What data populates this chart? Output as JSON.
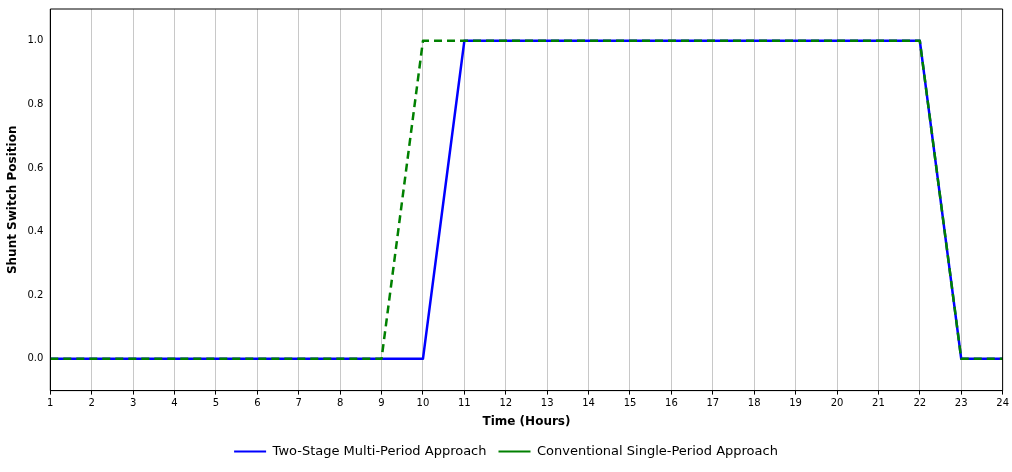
{
  "chart_data": {
    "type": "line",
    "xlabel": "Time (Hours)",
    "ylabel": "Shunt Switch Position",
    "x": [
      1,
      2,
      3,
      4,
      5,
      6,
      7,
      8,
      9,
      10,
      11,
      12,
      13,
      14,
      15,
      16,
      17,
      18,
      19,
      20,
      21,
      22,
      23,
      24
    ],
    "series": [
      {
        "name": "Two-Stage Multi-Period Approach",
        "color": "#0000ff",
        "line_style": "solid",
        "values": [
          0,
          0,
          0,
          0,
          0,
          0,
          0,
          0,
          0,
          0,
          1,
          1,
          1,
          1,
          1,
          1,
          1,
          1,
          1,
          1,
          1,
          1,
          0,
          0
        ]
      },
      {
        "name": "Conventional Single-Period Approach",
        "color": "#008000",
        "line_style": "dashed",
        "values": [
          0,
          0,
          0,
          0,
          0,
          0,
          0,
          0,
          0,
          1,
          1,
          1,
          1,
          1,
          1,
          1,
          1,
          1,
          1,
          1,
          1,
          1,
          0,
          0
        ]
      }
    ],
    "xlim": [
      1,
      24
    ],
    "xticks": [
      1,
      2,
      3,
      4,
      5,
      6,
      7,
      8,
      9,
      10,
      11,
      12,
      13,
      14,
      15,
      16,
      17,
      18,
      19,
      20,
      21,
      22,
      23,
      24
    ],
    "ylim": [
      -0.1,
      1.1
    ],
    "yticks": [
      {
        "value": 0,
        "label": "0.0"
      },
      {
        "value": 0.2,
        "label": "0.2"
      },
      {
        "value": 0.4,
        "label": "0.4"
      },
      {
        "value": 0.6,
        "label": "0.6"
      },
      {
        "value": 0.8,
        "label": "0.8"
      },
      {
        "value": 1,
        "label": "1.0"
      }
    ],
    "grid": "x",
    "legend": "bottom",
    "marker": "none"
  }
}
